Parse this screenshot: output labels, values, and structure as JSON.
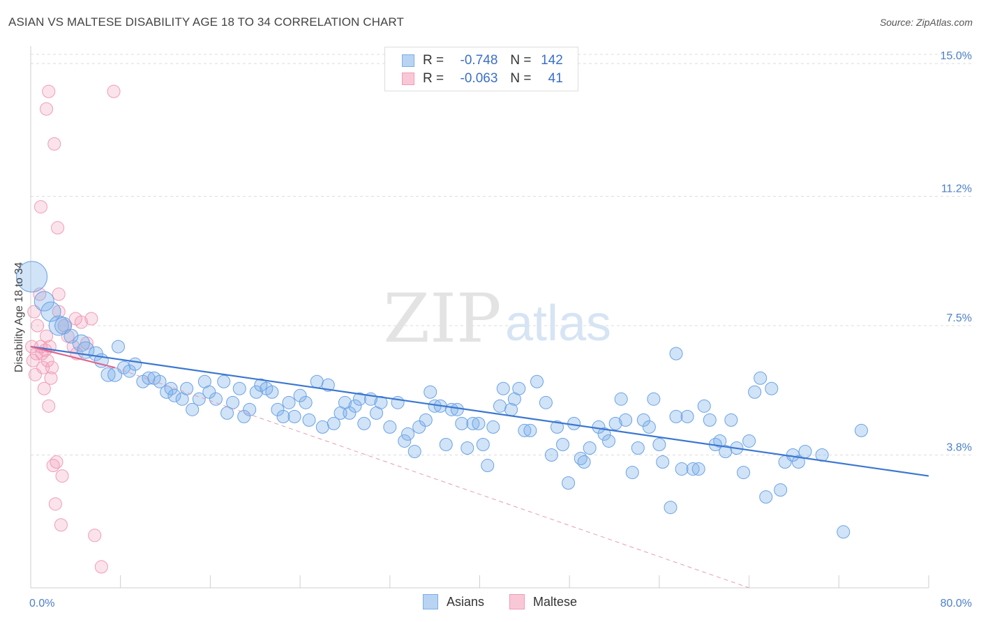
{
  "header": {
    "title": "ASIAN VS MALTESE DISABILITY AGE 18 TO 34 CORRELATION CHART",
    "source": "Source: ZipAtlas.com"
  },
  "watermark": {
    "zip": "ZIP",
    "atlas": "atlas"
  },
  "legend_top": {
    "rows": [
      {
        "r_label": "R =",
        "r_value": "-0.748",
        "n_label": "N =",
        "n_value": "142",
        "color": "#7aaee8"
      },
      {
        "r_label": "R =",
        "r_value": "-0.063",
        "n_label": "N =",
        "n_value": "41",
        "color": "#f29bb6"
      }
    ]
  },
  "legend_bottom": {
    "asians": "Asians",
    "maltese": "Maltese"
  },
  "chart_data": {
    "type": "scatter",
    "ylabel": "Disability Age 18 to 34",
    "x_tick_labels": [
      "0.0%",
      "80.0%"
    ],
    "y_tick_labels": [
      "3.8%",
      "7.5%",
      "11.2%",
      "15.0%"
    ],
    "xlim": [
      0,
      80
    ],
    "ylim": [
      0,
      15.5
    ],
    "y_ticks": [
      3.8,
      7.5,
      11.2,
      15.0
    ],
    "grid": true,
    "legend_position": "top-center",
    "colors": {
      "asians": "#6aa2e6",
      "asians_line": "#3b77d1",
      "maltese": "#f29bb6",
      "maltese_line": "#e0668f"
    },
    "series": [
      {
        "name": "Asians",
        "trend": {
          "x": [
            0,
            80
          ],
          "y": [
            6.9,
            3.2
          ]
        },
        "points": [
          [
            0.1,
            8.9,
            22
          ],
          [
            1.2,
            8.2,
            14
          ],
          [
            1.8,
            7.9,
            14
          ],
          [
            2.5,
            7.5,
            14
          ],
          [
            2.9,
            7.5,
            12
          ],
          [
            3.6,
            7.2,
            10
          ],
          [
            4.5,
            7.0,
            12
          ],
          [
            4.9,
            6.8,
            12
          ],
          [
            5.8,
            6.7,
            10
          ],
          [
            6.3,
            6.5,
            10
          ],
          [
            6.9,
            6.1,
            10
          ],
          [
            7.5,
            6.1,
            10
          ],
          [
            7.8,
            6.9,
            9
          ],
          [
            8.3,
            6.3,
            9
          ],
          [
            8.8,
            6.2,
            9
          ],
          [
            9.3,
            6.4,
            9
          ],
          [
            10.0,
            5.9,
            9
          ],
          [
            10.5,
            6.0,
            9
          ],
          [
            11.0,
            6.0,
            9
          ],
          [
            11.5,
            5.9,
            9
          ],
          [
            12.1,
            5.6,
            9
          ],
          [
            12.5,
            5.7,
            9
          ],
          [
            12.8,
            5.5,
            9
          ],
          [
            13.5,
            5.4,
            9
          ],
          [
            13.9,
            5.7,
            9
          ],
          [
            14.4,
            5.1,
            9
          ],
          [
            15.0,
            5.4,
            9
          ],
          [
            15.5,
            5.9,
            9
          ],
          [
            15.9,
            5.6,
            9
          ],
          [
            16.5,
            5.4,
            9
          ],
          [
            17.2,
            5.9,
            9
          ],
          [
            17.5,
            5.0,
            9
          ],
          [
            18.0,
            5.3,
            9
          ],
          [
            18.6,
            5.7,
            9
          ],
          [
            19.0,
            4.9,
            9
          ],
          [
            19.5,
            5.1,
            9
          ],
          [
            20.1,
            5.6,
            9
          ],
          [
            20.5,
            5.8,
            9
          ],
          [
            21.0,
            5.7,
            9
          ],
          [
            21.5,
            5.6,
            9
          ],
          [
            22.0,
            5.1,
            9
          ],
          [
            22.5,
            4.9,
            9
          ],
          [
            23.0,
            5.3,
            9
          ],
          [
            23.5,
            4.9,
            9
          ],
          [
            24.0,
            5.5,
            9
          ],
          [
            24.5,
            5.3,
            9
          ],
          [
            24.8,
            4.8,
            9
          ],
          [
            25.5,
            5.9,
            9
          ],
          [
            26.0,
            4.6,
            9
          ],
          [
            26.5,
            5.8,
            9
          ],
          [
            27.0,
            4.7,
            9
          ],
          [
            27.6,
            5.0,
            9
          ],
          [
            28.0,
            5.3,
            9
          ],
          [
            28.4,
            5.0,
            9
          ],
          [
            28.9,
            5.2,
            9
          ],
          [
            29.3,
            5.4,
            9
          ],
          [
            29.7,
            4.7,
            9
          ],
          [
            30.3,
            5.4,
            9
          ],
          [
            30.8,
            5.0,
            9
          ],
          [
            31.2,
            5.3,
            9
          ],
          [
            32.0,
            4.6,
            9
          ],
          [
            32.7,
            5.3,
            9
          ],
          [
            33.3,
            4.2,
            9
          ],
          [
            33.6,
            4.4,
            9
          ],
          [
            34.2,
            3.9,
            9
          ],
          [
            34.6,
            4.6,
            9
          ],
          [
            35.2,
            4.8,
            9
          ],
          [
            35.6,
            5.6,
            9
          ],
          [
            36.0,
            5.2,
            9
          ],
          [
            36.5,
            5.2,
            9
          ],
          [
            37.0,
            4.1,
            9
          ],
          [
            37.5,
            5.1,
            9
          ],
          [
            38.0,
            5.1,
            9
          ],
          [
            38.4,
            4.7,
            9
          ],
          [
            38.9,
            4.0,
            9
          ],
          [
            39.4,
            4.7,
            9
          ],
          [
            39.9,
            4.7,
            9
          ],
          [
            40.3,
            4.1,
            9
          ],
          [
            40.7,
            3.5,
            9
          ],
          [
            41.2,
            4.6,
            9
          ],
          [
            41.8,
            5.2,
            9
          ],
          [
            42.1,
            5.7,
            9
          ],
          [
            42.8,
            5.1,
            9
          ],
          [
            43.1,
            5.4,
            9
          ],
          [
            43.5,
            5.7,
            9
          ],
          [
            44.0,
            4.5,
            9
          ],
          [
            44.5,
            4.5,
            9
          ],
          [
            45.1,
            5.9,
            9
          ],
          [
            45.9,
            5.3,
            9
          ],
          [
            46.4,
            3.8,
            9
          ],
          [
            46.9,
            4.6,
            9
          ],
          [
            47.4,
            4.1,
            9
          ],
          [
            47.9,
            3.0,
            9
          ],
          [
            48.4,
            4.7,
            9
          ],
          [
            49.0,
            3.7,
            9
          ],
          [
            49.3,
            3.6,
            9
          ],
          [
            49.8,
            4.0,
            9
          ],
          [
            50.6,
            4.6,
            9
          ],
          [
            51.1,
            4.4,
            9
          ],
          [
            51.5,
            4.2,
            9
          ],
          [
            52.1,
            4.7,
            9
          ],
          [
            52.6,
            5.4,
            9
          ],
          [
            53.0,
            4.8,
            9
          ],
          [
            53.6,
            3.3,
            9
          ],
          [
            54.1,
            4.0,
            9
          ],
          [
            54.6,
            4.8,
            9
          ],
          [
            55.1,
            4.6,
            9
          ],
          [
            55.5,
            5.4,
            9
          ],
          [
            56.0,
            4.1,
            9
          ],
          [
            56.3,
            3.6,
            9
          ],
          [
            57.0,
            2.3,
            9
          ],
          [
            57.5,
            4.9,
            9
          ],
          [
            58.0,
            3.4,
            9
          ],
          [
            58.5,
            4.9,
            9
          ],
          [
            59.0,
            3.4,
            9
          ],
          [
            59.5,
            3.4,
            9
          ],
          [
            60.0,
            5.2,
            9
          ],
          [
            60.5,
            4.8,
            9
          ],
          [
            61.0,
            4.1,
            9
          ],
          [
            61.4,
            4.2,
            9
          ],
          [
            61.9,
            3.9,
            9
          ],
          [
            62.4,
            4.8,
            9
          ],
          [
            62.9,
            4.0,
            9
          ],
          [
            63.5,
            3.3,
            9
          ],
          [
            64.0,
            4.2,
            9
          ],
          [
            64.5,
            5.6,
            9
          ],
          [
            65.0,
            6.0,
            9
          ],
          [
            65.5,
            2.6,
            9
          ],
          [
            66.0,
            5.7,
            9
          ],
          [
            66.8,
            2.8,
            9
          ],
          [
            67.2,
            3.6,
            9
          ],
          [
            67.9,
            3.8,
            9
          ],
          [
            68.4,
            3.6,
            9
          ],
          [
            69.0,
            3.9,
            9
          ],
          [
            70.5,
            3.8,
            9
          ],
          [
            72.4,
            1.6,
            9
          ],
          [
            74.0,
            4.5,
            9
          ],
          [
            57.5,
            6.7,
            9
          ]
        ]
      },
      {
        "name": "Maltese",
        "trend": {
          "x": [
            0,
            7.5
          ],
          "y": [
            6.9,
            6.3
          ]
        },
        "trend_extended": {
          "x": [
            7.5,
            64
          ],
          "y": [
            6.3,
            0.0
          ]
        },
        "points": [
          [
            0.1,
            6.9,
            9
          ],
          [
            0.2,
            6.5,
            9
          ],
          [
            0.3,
            7.9,
            9
          ],
          [
            0.4,
            6.1,
            9
          ],
          [
            0.5,
            6.7,
            9
          ],
          [
            0.6,
            7.5,
            9
          ],
          [
            0.8,
            8.4,
            9
          ],
          [
            0.9,
            6.9,
            9
          ],
          [
            1.0,
            6.7,
            9
          ],
          [
            1.1,
            6.3,
            9
          ],
          [
            1.2,
            5.7,
            9
          ],
          [
            1.3,
            6.8,
            9
          ],
          [
            1.4,
            7.2,
            9
          ],
          [
            1.5,
            6.5,
            9
          ],
          [
            1.6,
            5.2,
            9
          ],
          [
            1.7,
            6.9,
            9
          ],
          [
            1.8,
            6.0,
            9
          ],
          [
            1.9,
            6.3,
            9
          ],
          [
            2.0,
            3.5,
            9
          ],
          [
            2.2,
            2.4,
            9
          ],
          [
            2.3,
            3.6,
            9
          ],
          [
            2.5,
            7.9,
            9
          ],
          [
            2.7,
            1.8,
            9
          ],
          [
            2.8,
            3.2,
            9
          ],
          [
            3.0,
            7.5,
            9
          ],
          [
            3.3,
            7.2,
            9
          ],
          [
            3.8,
            6.9,
            9
          ],
          [
            4.0,
            7.7,
            9
          ],
          [
            4.1,
            6.7,
            9
          ],
          [
            4.5,
            7.6,
            9
          ],
          [
            5.0,
            7.0,
            9
          ],
          [
            0.9,
            10.9,
            9
          ],
          [
            1.4,
            13.7,
            9
          ],
          [
            1.6,
            14.2,
            9
          ],
          [
            2.1,
            12.7,
            9
          ],
          [
            2.4,
            10.3,
            9
          ],
          [
            2.5,
            8.4,
            9
          ],
          [
            5.4,
            7.7,
            9
          ],
          [
            5.7,
            1.5,
            9
          ],
          [
            6.3,
            0.6,
            9
          ],
          [
            7.4,
            14.2,
            9
          ]
        ]
      }
    ]
  }
}
